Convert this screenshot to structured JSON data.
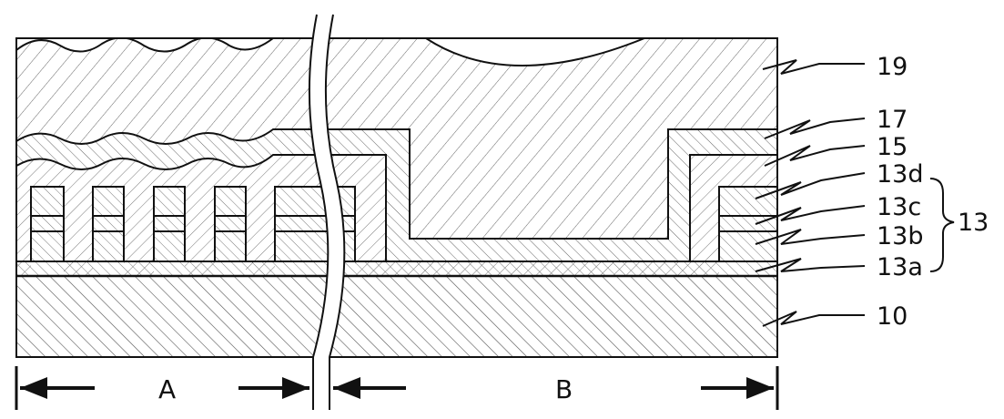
{
  "layers": {
    "l19": "19",
    "l17": "17",
    "l15": "15",
    "l13d": "13d",
    "l13c": "13c",
    "l13b": "13b",
    "l13a": "13a",
    "l13": "13",
    "l10": "10"
  },
  "regions": {
    "a": "A",
    "b": "B"
  },
  "colors": {
    "line": "#111111",
    "hatch": "#555555",
    "background": "#ffffff"
  }
}
